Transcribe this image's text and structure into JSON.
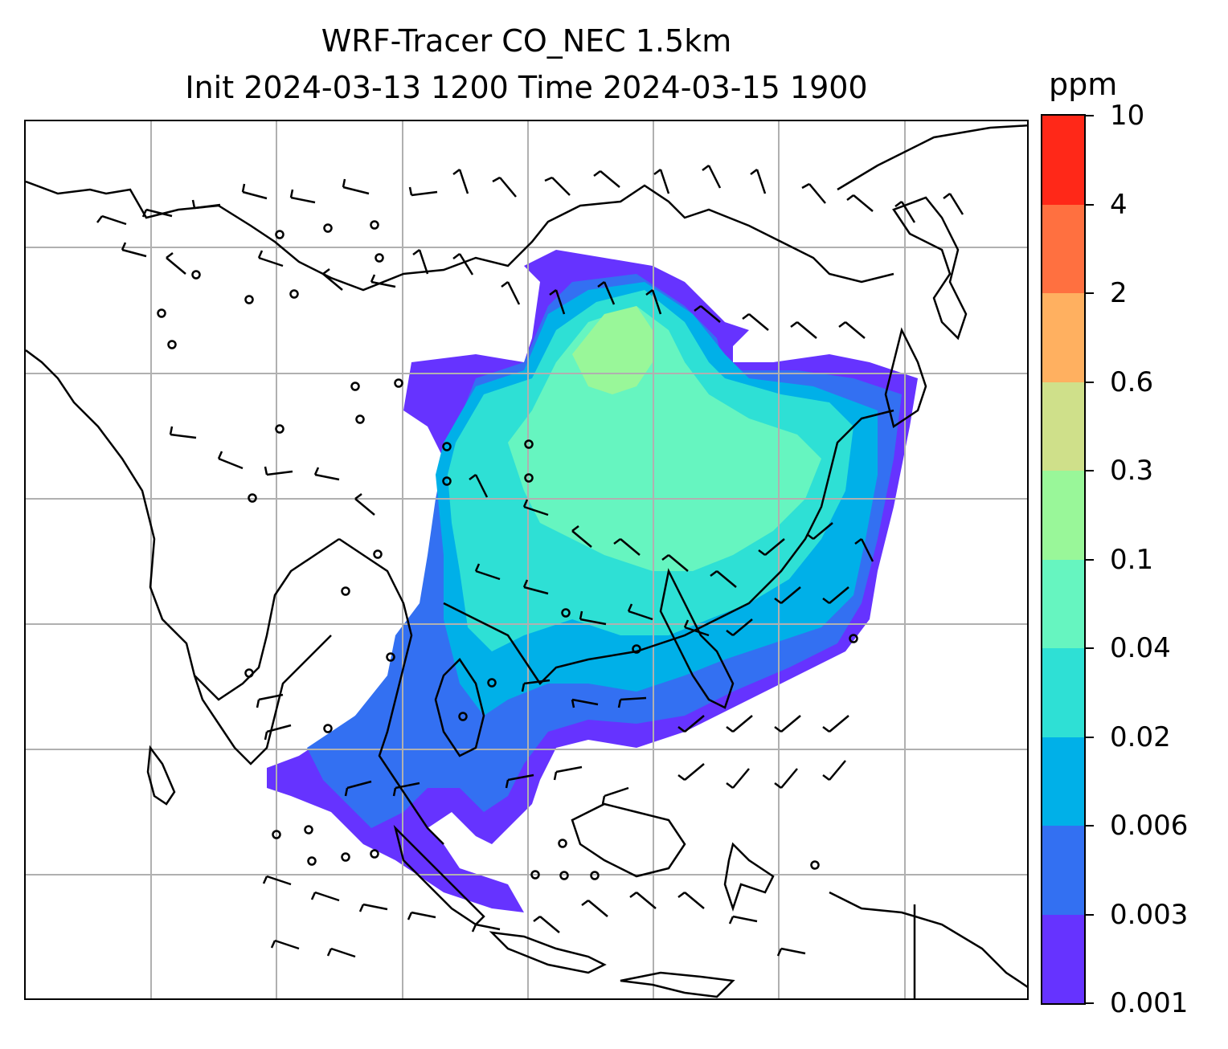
{
  "title": {
    "line1": "WRF-Tracer CO_NEC 1.5km",
    "line2": "Init 2024-03-13 1200 Time 2024-03-15 1900"
  },
  "colorbar": {
    "unit": "ppm",
    "levels": [
      "0.001",
      "0.003",
      "0.006",
      "0.02",
      "0.04",
      "0.1",
      "0.3",
      "0.6",
      "2",
      "4",
      "10"
    ],
    "colors": [
      "#6633ff",
      "#3370f2",
      "#00b0e8",
      "#2ee0d5",
      "#66f5c0",
      "#99f799",
      "#cfe08a",
      "#ffb060",
      "#ff7040",
      "#ff2818"
    ]
  },
  "map": {
    "gridlines": true,
    "coastline_color": "#000000",
    "gridline_color": "#b0b0b0",
    "wind_barb_color": "#000000"
  }
}
